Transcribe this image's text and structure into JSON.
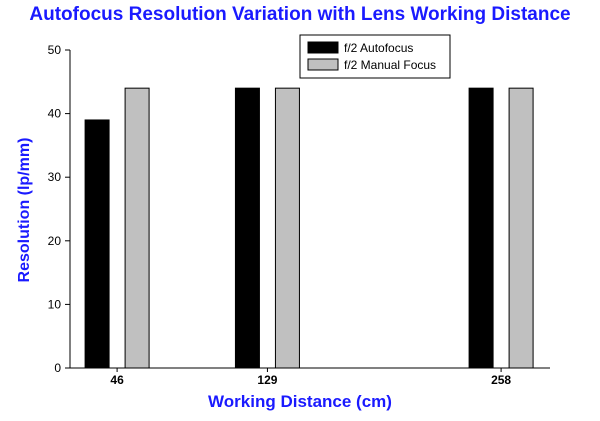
{
  "chart_data": {
    "type": "bar",
    "title": "Autofocus Resolution Variation with Lens Working Distance",
    "xlabel": "Working Distance (cm)",
    "ylabel": "Resolution (lp/mm)",
    "categories": [
      "46",
      "129",
      "258"
    ],
    "x": [
      46,
      129,
      258
    ],
    "ylim": [
      0,
      50
    ],
    "yticks": [
      0,
      10,
      20,
      30,
      40,
      50
    ],
    "series": [
      {
        "name": "f/2 Autofocus",
        "values": [
          39,
          44,
          44
        ],
        "color": "#000000"
      },
      {
        "name": "f/2 Manual Focus",
        "values": [
          44,
          44,
          44
        ],
        "color": "#c0c0c0"
      }
    ],
    "grid": false,
    "legend_position": "top-right"
  }
}
